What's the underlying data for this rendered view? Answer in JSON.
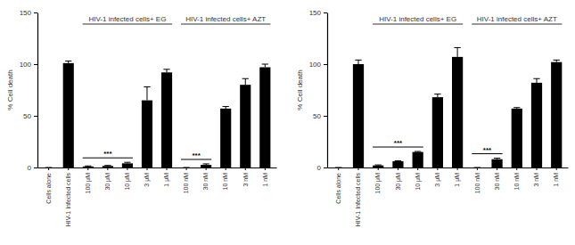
{
  "chart_data": [
    {
      "type": "bar",
      "y_label": "% Cell death",
      "categories": [
        "Cells alone",
        "HIV-1 Infected cells",
        "100 μM",
        "30 μM",
        "10 μM",
        "3 μM",
        "1 μM",
        "100 nM",
        "30 nM",
        "10 nM",
        "3 nM",
        "1 nM"
      ],
      "values": [
        0,
        101,
        1,
        1.5,
        4,
        65,
        92,
        0,
        2.5,
        57,
        80,
        97
      ],
      "errors": [
        0,
        2,
        0.5,
        0.5,
        1,
        13,
        3,
        0,
        1,
        2,
        6,
        3
      ],
      "color": "#000000",
      "ylim": [
        0,
        150
      ],
      "yticks": [
        0,
        50,
        100,
        150
      ],
      "groups": [
        {
          "label": "HIV-1 infected cells+ EG",
          "from": 2,
          "to": 6
        },
        {
          "label": "HIV-1 infected cells+ AZT",
          "from": 7,
          "to": 11
        }
      ],
      "significance": [
        {
          "label": "***",
          "from": 2,
          "to": 4
        },
        {
          "label": "***",
          "from": 7,
          "to": 8
        }
      ]
    },
    {
      "type": "bar",
      "y_label": "% Cell death",
      "categories": [
        "Cells alone",
        "HIV-1 Infected cells",
        "100 μM",
        "30 μM",
        "10 μM",
        "3 μM",
        "1 μM",
        "100 nM",
        "30 nM",
        "10 nM",
        "3 nM",
        "1 nM"
      ],
      "values": [
        0,
        100,
        2,
        6,
        15,
        68,
        107,
        0,
        8,
        57,
        82,
        102
      ],
      "errors": [
        0,
        4,
        0.5,
        0.5,
        0.5,
        3,
        9,
        0,
        1,
        1,
        4,
        2
      ],
      "color": "#000000",
      "ylim": [
        0,
        150
      ],
      "yticks": [
        0,
        50,
        100,
        150
      ],
      "groups": [
        {
          "label": "HIV-1 infected cells+ EG",
          "from": 2,
          "to": 6
        },
        {
          "label": "HIV-1 infected cells+ AZT",
          "from": 7,
          "to": 11
        }
      ],
      "significance": [
        {
          "label": "***",
          "from": 2,
          "to": 4
        },
        {
          "label": "***",
          "from": 7,
          "to": 8
        }
      ]
    }
  ]
}
